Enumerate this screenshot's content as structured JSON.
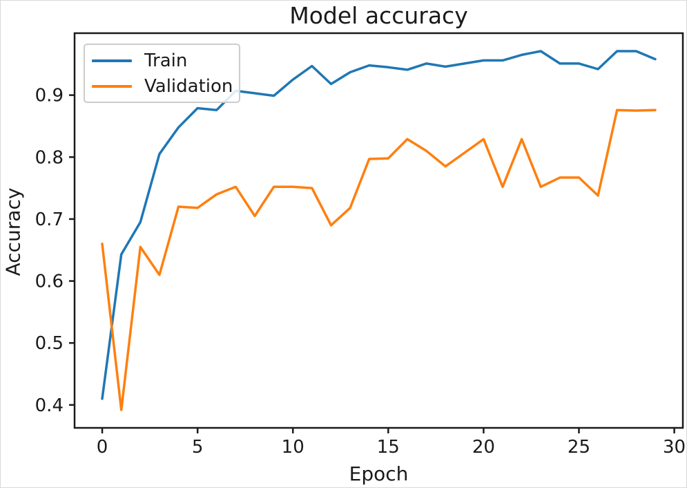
{
  "chart_data": {
    "type": "line",
    "title": "Model accuracy",
    "xlabel": "Epoch",
    "ylabel": "Accuracy",
    "x": [
      0,
      1,
      2,
      3,
      4,
      5,
      6,
      7,
      8,
      9,
      10,
      11,
      12,
      13,
      14,
      15,
      16,
      17,
      18,
      19,
      20,
      21,
      22,
      23,
      24,
      25,
      26,
      27,
      28,
      29
    ],
    "series": [
      {
        "name": "Train",
        "color": "#1f77b4",
        "values": [
          0.41,
          0.643,
          0.695,
          0.805,
          0.848,
          0.879,
          0.876,
          0.907,
          0.903,
          0.899,
          0.925,
          0.947,
          0.918,
          0.937,
          0.948,
          0.945,
          0.941,
          0.951,
          0.946,
          0.951,
          0.956,
          0.956,
          0.965,
          0.971,
          0.951,
          0.951,
          0.942,
          0.971,
          0.971,
          0.958
        ]
      },
      {
        "name": "Validation",
        "color": "#ff7f0e",
        "values": [
          0.66,
          0.392,
          0.655,
          0.61,
          0.72,
          0.718,
          0.74,
          0.752,
          0.705,
          0.752,
          0.752,
          0.75,
          0.69,
          0.718,
          0.797,
          0.798,
          0.829,
          0.81,
          0.785,
          0.807,
          0.829,
          0.752,
          0.829,
          0.752,
          0.767,
          0.767,
          0.738,
          0.876,
          0.875,
          0.876
        ]
      }
    ],
    "xticks": [
      0,
      5,
      10,
      15,
      20,
      25,
      30
    ],
    "yticks": [
      0.4,
      0.5,
      0.6,
      0.7,
      0.8,
      0.9
    ],
    "xlim": [
      -1.45,
      30.45
    ],
    "ylim": [
      0.363,
      1.0
    ],
    "grid": false,
    "legend_position": "upper left",
    "axis_color": "#1a1a1a",
    "text_color": "#1a1a1a"
  }
}
